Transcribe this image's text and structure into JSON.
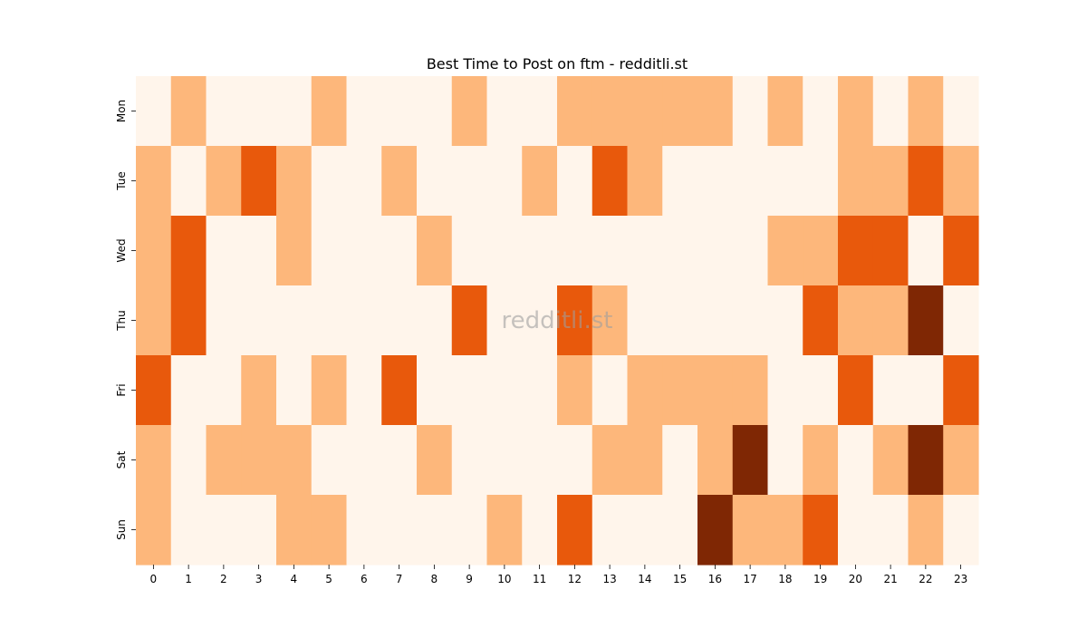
{
  "chart_data": {
    "type": "heatmap",
    "title": "Best Time to Post on ftm - redditli.st",
    "xlabel": "",
    "ylabel": "",
    "x_categories": [
      "0",
      "1",
      "2",
      "3",
      "4",
      "5",
      "6",
      "7",
      "8",
      "9",
      "10",
      "11",
      "12",
      "13",
      "14",
      "15",
      "16",
      "17",
      "18",
      "19",
      "20",
      "21",
      "22",
      "23"
    ],
    "y_categories": [
      "Mon",
      "Tue",
      "Wed",
      "Thu",
      "Fri",
      "Sat",
      "Sun"
    ],
    "values": [
      [
        0,
        1,
        0,
        0,
        0,
        1,
        0,
        0,
        0,
        1,
        0,
        0,
        1,
        1,
        1,
        1,
        1,
        0,
        1,
        0,
        1,
        0,
        1,
        0
      ],
      [
        1,
        0,
        1,
        2,
        1,
        0,
        0,
        1,
        0,
        0,
        0,
        1,
        0,
        2,
        1,
        0,
        0,
        0,
        0,
        0,
        1,
        1,
        2,
        1
      ],
      [
        1,
        2,
        0,
        0,
        1,
        0,
        0,
        0,
        1,
        0,
        0,
        0,
        0,
        0,
        0,
        0,
        0,
        0,
        1,
        1,
        2,
        2,
        0,
        2
      ],
      [
        1,
        2,
        0,
        0,
        0,
        0,
        0,
        0,
        0,
        2,
        0,
        0,
        2,
        1,
        0,
        0,
        0,
        0,
        0,
        2,
        1,
        1,
        3,
        0
      ],
      [
        2,
        0,
        0,
        1,
        0,
        1,
        0,
        2,
        0,
        0,
        0,
        0,
        1,
        0,
        1,
        1,
        1,
        1,
        0,
        0,
        2,
        0,
        0,
        2
      ],
      [
        1,
        0,
        1,
        1,
        1,
        0,
        0,
        0,
        1,
        0,
        0,
        0,
        0,
        1,
        1,
        0,
        1,
        3,
        0,
        1,
        0,
        1,
        3,
        1
      ],
      [
        1,
        0,
        0,
        0,
        1,
        1,
        0,
        0,
        0,
        0,
        1,
        0,
        2,
        0,
        0,
        0,
        3,
        1,
        1,
        2,
        0,
        0,
        1,
        0
      ]
    ],
    "value_range": [
      0,
      3
    ],
    "colormap": [
      "#fff5eb",
      "#fdb77b",
      "#e8590c",
      "#7f2704"
    ],
    "watermark": "redditli.st"
  }
}
